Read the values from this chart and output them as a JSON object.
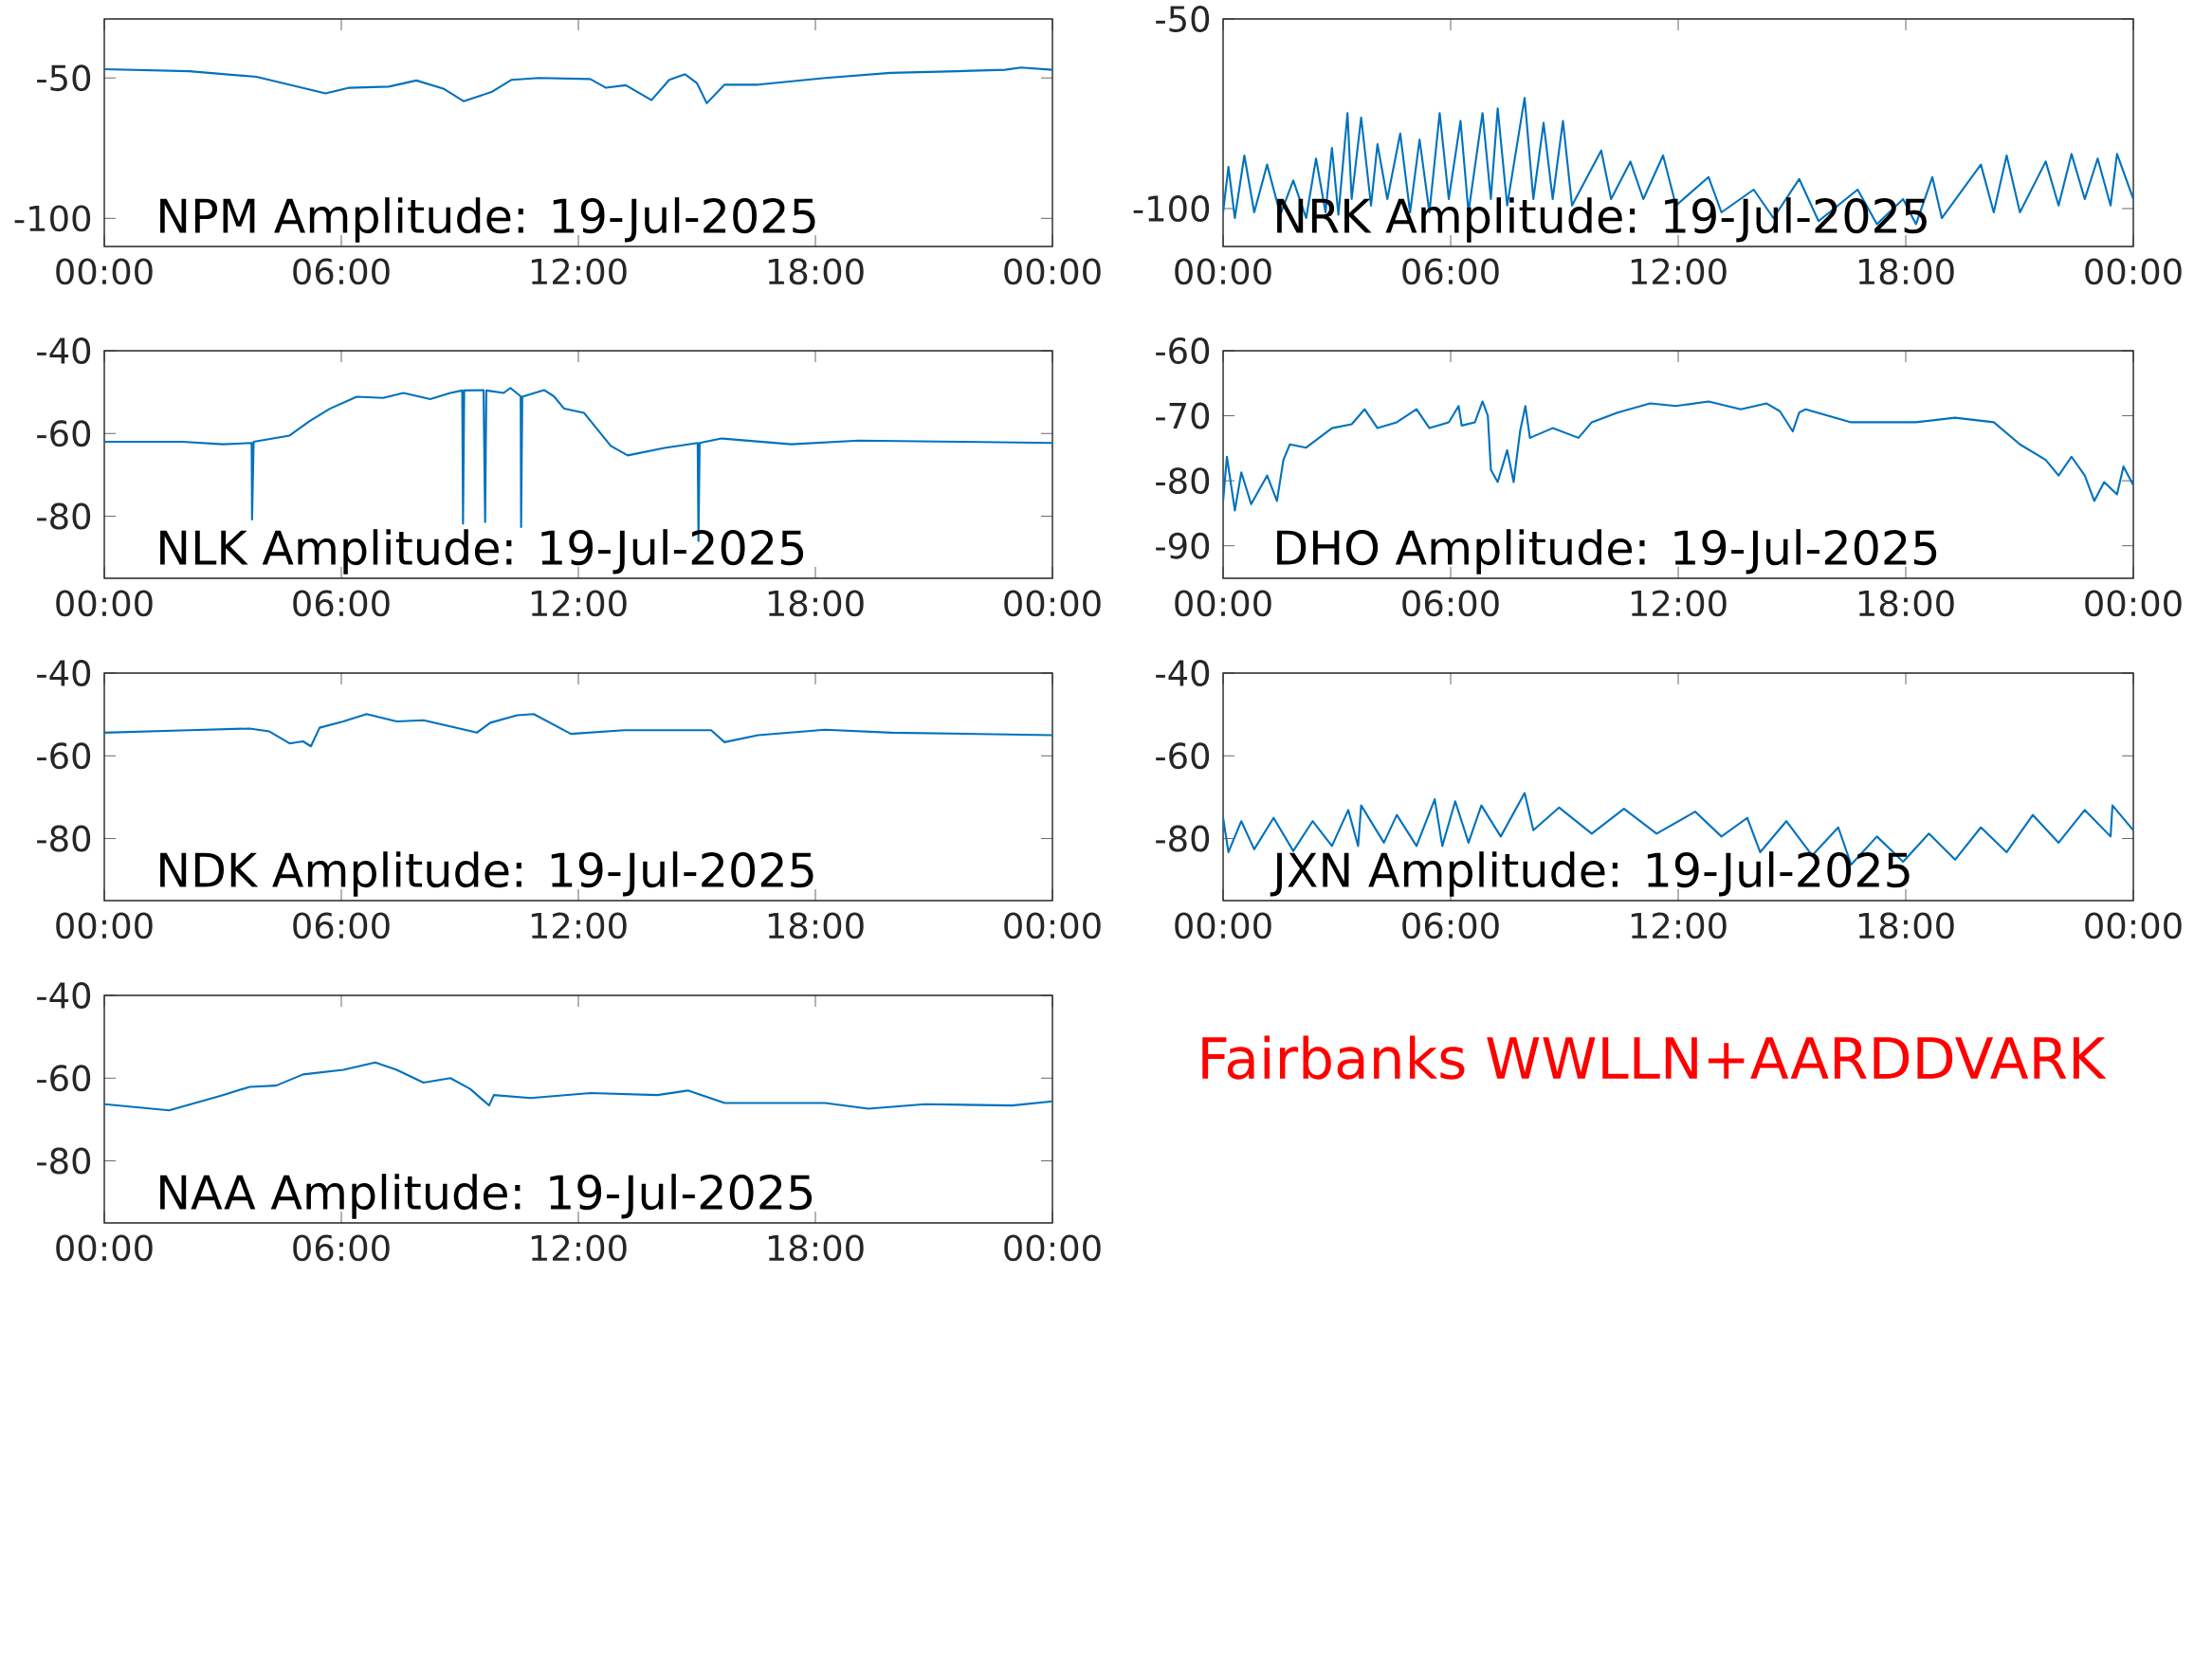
{
  "chart_data": [
    {
      "type": "line",
      "title": "NPM Amplitude: 19-Jul-2025",
      "color": "#0072bd",
      "xlim": [
        0,
        24
      ],
      "ylim": [
        -110,
        -29
      ],
      "yticks": [
        -100,
        -50
      ],
      "xticks": [
        {
          "value": 0,
          "label": "00:00"
        },
        {
          "value": 6,
          "label": "06:00"
        },
        {
          "value": 12,
          "label": "12:00"
        },
        {
          "value": 18,
          "label": "18:00"
        },
        {
          "value": 24,
          "label": "00:00"
        }
      ],
      "x": [
        0,
        2.15,
        3.85,
        5.6,
        6.2,
        7.2,
        7.9,
        8.6,
        9.1,
        9.8,
        10.3,
        11.0,
        12.3,
        12.7,
        13.2,
        13.85,
        14.3,
        14.7,
        15.0,
        15.25,
        15.7,
        16.55,
        18.25,
        19.9,
        21.6,
        22.8,
        23.2,
        24
      ],
      "values": [
        -46.9,
        -47.6,
        -49.6,
        -55.5,
        -53.5,
        -53.1,
        -50.9,
        -53.9,
        -58.3,
        -55,
        -50.7,
        -50,
        -50.4,
        -53.5,
        -52.6,
        -57.9,
        -50.7,
        -48.7,
        -51.8,
        -59,
        -52.4,
        -52.4,
        -50,
        -48.2,
        -47.6,
        -47.1,
        -46.3,
        -47.1
      ]
    },
    {
      "type": "line",
      "title": "NRK Amplitude: 19-Jul-2025",
      "color": "#0072bd",
      "xlim": [
        0,
        24
      ],
      "ylim": [
        -110,
        -50
      ],
      "yticks": [
        -100,
        -50
      ],
      "xticks": [
        {
          "value": 0,
          "label": "00:00"
        },
        {
          "value": 6,
          "label": "06:00"
        },
        {
          "value": 12,
          "label": "12:00"
        },
        {
          "value": 18,
          "label": "18:00"
        },
        {
          "value": 24,
          "label": "00:00"
        }
      ],
      "x": [
        0,
        0.14,
        0.31,
        0.56,
        0.82,
        1.16,
        1.51,
        1.85,
        2.19,
        2.45,
        2.7,
        2.87,
        3.04,
        3.28,
        3.39,
        3.64,
        3.9,
        4.07,
        4.33,
        4.67,
        4.93,
        5.18,
        5.44,
        5.71,
        5.95,
        6.26,
        6.47,
        6.84,
        7.06,
        7.24,
        7.49,
        7.95,
        8.18,
        8.45,
        8.69,
        8.96,
        9.2,
        9.97,
        10.23,
        10.74,
        11.08,
        11.6,
        11.94,
        12.8,
        13.14,
        13.99,
        14.51,
        15.19,
        15.7,
        16.73,
        17.24,
        17.93,
        18.27,
        18.7,
        18.95,
        19.98,
        20.32,
        20.66,
        21.01,
        21.69,
        22.03,
        22.37,
        22.72,
        23.06,
        23.4,
        23.57,
        24
      ],
      "values": [
        -101,
        -89,
        -102.5,
        -86,
        -101,
        -88.4,
        -101.6,
        -92.6,
        -102.5,
        -86.8,
        -101,
        -84,
        -101.6,
        -74.8,
        -97.5,
        -76,
        -99.2,
        -83,
        -97.5,
        -80.2,
        -101,
        -81.8,
        -101,
        -74.8,
        -97.5,
        -76.9,
        -101,
        -74.8,
        -97.5,
        -73.6,
        -99.2,
        -70.8,
        -97.5,
        -77.4,
        -97.5,
        -76.9,
        -99.2,
        -84.7,
        -97.5,
        -87.6,
        -97.5,
        -86,
        -99.2,
        -91.7,
        -101,
        -95,
        -102.5,
        -92.2,
        -103.3,
        -95,
        -104.1,
        -97.5,
        -104.1,
        -91.7,
        -102.5,
        -88.4,
        -101,
        -86,
        -101,
        -87.6,
        -99.2,
        -85.6,
        -97.5,
        -86.8,
        -99.2,
        -85.6,
        -97.5
      ]
    },
    {
      "type": "line",
      "title": "NLK Amplitude: 19-Jul-2025",
      "color": "#0072bd",
      "xlim": [
        0,
        24
      ],
      "ylim": [
        -95,
        -40
      ],
      "yticks": [
        -80,
        -60,
        -40
      ],
      "xticks": [
        {
          "value": 0,
          "label": "00:00"
        },
        {
          "value": 6,
          "label": "06:00"
        },
        {
          "value": 12,
          "label": "12:00"
        },
        {
          "value": 18,
          "label": "18:00"
        },
        {
          "value": 24,
          "label": "00:00"
        }
      ],
      "x": [
        0,
        1.98,
        3.0,
        3.73,
        3.74,
        3.78,
        4.69,
        5.2,
        5.71,
        6.39,
        7.06,
        7.57,
        8.25,
        8.76,
        9.06,
        9.08,
        9.11,
        9.6,
        9.64,
        9.67,
        10.11,
        10.28,
        10.54,
        10.55,
        10.58,
        11.13,
        11.38,
        11.64,
        12.14,
        12.82,
        13.25,
        14.18,
        15.02,
        15.04,
        15.07,
        15.62,
        17.39,
        19.09,
        21.63,
        24
      ],
      "values": [
        -62,
        -62,
        -62.6,
        -62.3,
        -80.8,
        -62,
        -60.5,
        -57,
        -54,
        -51.1,
        -51.4,
        -50.2,
        -51.7,
        -50.2,
        -49.6,
        -81.8,
        -49.6,
        -49.5,
        -81.4,
        -49.6,
        -50.2,
        -49,
        -51,
        -82.6,
        -51.1,
        -49.5,
        -51,
        -54,
        -55,
        -63,
        -65.3,
        -63.5,
        -62.3,
        -86,
        -62.3,
        -61.2,
        -62.6,
        -61.7,
        -62,
        -62.3
      ]
    },
    {
      "type": "line",
      "title": "DHO Amplitude: 19-Jul-2025",
      "color": "#0072bd",
      "xlim": [
        0,
        24
      ],
      "ylim": [
        -95,
        -60
      ],
      "yticks": [
        -90,
        -80,
        -70,
        -60
      ],
      "xticks": [
        {
          "value": 0,
          "label": "00:00"
        },
        {
          "value": 6,
          "label": "06:00"
        },
        {
          "value": 12,
          "label": "12:00"
        },
        {
          "value": 18,
          "label": "18:00"
        },
        {
          "value": 24,
          "label": "00:00"
        }
      ],
      "x": [
        0,
        0.1,
        0.31,
        0.48,
        0.74,
        1.16,
        1.42,
        1.59,
        1.76,
        2.19,
        2.87,
        3.39,
        3.73,
        4.07,
        4.58,
        5.1,
        5.44,
        5.95,
        6.21,
        6.29,
        6.64,
        6.84,
        6.98,
        7.06,
        7.24,
        7.49,
        7.66,
        7.83,
        7.97,
        8.09,
        8.69,
        9.37,
        9.72,
        10.4,
        11.26,
        11.94,
        12.8,
        13.65,
        14.33,
        14.68,
        15.02,
        15.19,
        15.36,
        16.56,
        18.27,
        19.3,
        20.32,
        21.01,
        21.69,
        22.03,
        22.37,
        22.72,
        22.97,
        23.23,
        23.57,
        23.74,
        24
      ],
      "values": [
        -83.1,
        -76.3,
        -84.6,
        -78.7,
        -83.6,
        -79.2,
        -83.1,
        -76.8,
        -74.4,
        -74.9,
        -71.9,
        -71.3,
        -69,
        -71.9,
        -71,
        -69,
        -71.9,
        -71,
        -68.5,
        -71.5,
        -71,
        -67.8,
        -70,
        -78.3,
        -80.2,
        -75.3,
        -80.2,
        -72.4,
        -68.5,
        -73.4,
        -71.9,
        -73.4,
        -71,
        -69.5,
        -68.1,
        -68.5,
        -67.8,
        -69,
        -68.1,
        -69.3,
        -72.4,
        -69.5,
        -69,
        -71,
        -71,
        -70.3,
        -71,
        -74.4,
        -76.8,
        -79.2,
        -76.3,
        -79.2,
        -83.1,
        -80.2,
        -82.1,
        -77.8,
        -80.7
      ]
    },
    {
      "type": "line",
      "title": "NDK Amplitude: 19-Jul-2025",
      "color": "#0072bd",
      "xlim": [
        0,
        24
      ],
      "ylim": [
        -95,
        -40
      ],
      "yticks": [
        -80,
        -60,
        -40
      ],
      "xticks": [
        {
          "value": 0,
          "label": "00:00"
        },
        {
          "value": 6,
          "label": "06:00"
        },
        {
          "value": 12,
          "label": "12:00"
        },
        {
          "value": 18,
          "label": "18:00"
        },
        {
          "value": 24,
          "label": "00:00"
        }
      ],
      "x": [
        0,
        2.15,
        3.68,
        4.18,
        4.69,
        5.03,
        5.23,
        5.45,
        6.05,
        6.64,
        7.4,
        8.08,
        8.76,
        9.43,
        9.77,
        10.45,
        10.87,
        11.81,
        13.16,
        15.36,
        15.7,
        16.55,
        18.24,
        19.93,
        24
      ],
      "values": [
        -54.4,
        -53.8,
        -53.4,
        -54.1,
        -57,
        -56.5,
        -57.7,
        -53.2,
        -51.7,
        -49.9,
        -51.7,
        -51.4,
        -52.9,
        -54.4,
        -52,
        -50.2,
        -49.9,
        -54.7,
        -53.8,
        -53.8,
        -56.7,
        -55,
        -53.7,
        -54.4,
        -55
      ]
    },
    {
      "type": "line",
      "title": "JXN Amplitude: 19-Jul-2025",
      "color": "#0072bd",
      "xlim": [
        0,
        24
      ],
      "ylim": [
        -95,
        -40
      ],
      "yticks": [
        -80,
        -60,
        -40
      ],
      "xticks": [
        {
          "value": 0,
          "label": "00:00"
        },
        {
          "value": 6,
          "label": "06:00"
        },
        {
          "value": 12,
          "label": "12:00"
        },
        {
          "value": 18,
          "label": "18:00"
        },
        {
          "value": 24,
          "label": "00:00"
        }
      ],
      "x": [
        0,
        0.14,
        0.48,
        0.82,
        1.33,
        1.85,
        2.36,
        2.87,
        3.3,
        3.56,
        3.64,
        4.24,
        4.58,
        5.1,
        5.58,
        5.78,
        6.12,
        6.47,
        6.81,
        7.32,
        7.95,
        8.18,
        8.86,
        9.72,
        10.57,
        11.43,
        12.45,
        13.14,
        13.82,
        14.16,
        14.85,
        15.53,
        16.22,
        16.56,
        17.24,
        17.93,
        18.61,
        19.3,
        19.98,
        20.66,
        21.35,
        22.03,
        22.72,
        23.4,
        23.45,
        24
      ],
      "values": [
        -75,
        -83.3,
        -75.8,
        -82.6,
        -75,
        -83,
        -75.8,
        -81.8,
        -73.1,
        -81.8,
        -72,
        -81,
        -74.3,
        -81.8,
        -70.5,
        -81.8,
        -71,
        -81,
        -72,
        -79.5,
        -69,
        -78,
        -72.5,
        -78.8,
        -72.8,
        -78.8,
        -73.5,
        -79.5,
        -75,
        -83.3,
        -75.8,
        -84.1,
        -77.3,
        -86.3,
        -79.5,
        -85.6,
        -78.8,
        -85.1,
        -77.3,
        -83.3,
        -74.3,
        -81,
        -73.1,
        -79.5,
        -72,
        -78
      ]
    },
    {
      "type": "line",
      "title": "NAA Amplitude: 19-Jul-2025",
      "color": "#0072bd",
      "xlim": [
        0,
        24
      ],
      "ylim": [
        -95,
        -40
      ],
      "yticks": [
        -80,
        -60,
        -40
      ],
      "xticks": [
        {
          "value": 0,
          "label": "00:00"
        },
        {
          "value": 6,
          "label": "06:00"
        },
        {
          "value": 12,
          "label": "12:00"
        },
        {
          "value": 18,
          "label": "18:00"
        },
        {
          "value": 24,
          "label": "00:00"
        }
      ],
      "x": [
        0,
        1.64,
        3.0,
        3.68,
        4.35,
        5.03,
        6.05,
        6.86,
        7.4,
        8.08,
        8.76,
        9.26,
        9.74,
        9.86,
        10.79,
        12.31,
        14.0,
        14.77,
        15.7,
        18.24,
        19.34,
        20.78,
        22.98,
        24
      ],
      "values": [
        -66.3,
        -67.8,
        -64.1,
        -62.1,
        -61.8,
        -59.1,
        -58,
        -56.2,
        -58,
        -61.1,
        -60,
        -62.6,
        -66.6,
        -64.1,
        -64.8,
        -63.6,
        -64.1,
        -63,
        -66,
        -66,
        -67.4,
        -66.3,
        -66.6,
        -65.6
      ]
    },
    {
      "type": "other",
      "annotations": [
        "Fairbanks WWLLN+AARDDVARK"
      ]
    }
  ]
}
